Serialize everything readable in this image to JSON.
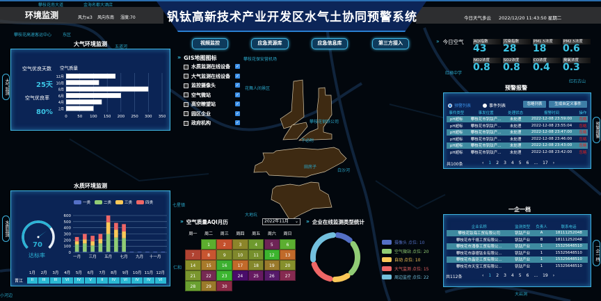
{
  "header": {
    "section": "环境监测",
    "wind_force": "风力≤3",
    "wind_dir": "风向东南",
    "humidity": "湿度:70",
    "title": "钒钛高新技术产业开发区水气土协同预警系统",
    "weather": "今日天气多云",
    "datetime": "2022/12/20 11:43:50 星期二"
  },
  "nav_buttons": [
    "视频监控",
    "应急资源库",
    "应急信息库",
    "第三方接入"
  ],
  "side_tabs": {
    "air": "大气监测",
    "water": "水质监测",
    "alert": "预警报警",
    "enterprise": "一企一档"
  },
  "gis": {
    "title": "GIS地图图标",
    "items": [
      {
        "label": "水质监测在线设备",
        "checked": true
      },
      {
        "label": "大气监测在线设备",
        "checked": true
      },
      {
        "label": "监控摄像头",
        "checked": true
      },
      {
        "label": "空气微站",
        "checked": true
      },
      {
        "label": "高空瞭望站",
        "checked": true
      },
      {
        "label": "园区企业",
        "checked": true
      },
      {
        "label": "政府机构",
        "checked": true
      }
    ]
  },
  "air_panel": {
    "title": "大气环境监测",
    "good_days_label": "空气优良天数",
    "good_days": "25天",
    "good_rate_label": "空气优良率",
    "good_rate": "80%",
    "chart_data": {
      "type": "bar",
      "orientation": "horizontal",
      "title": "空气质量",
      "categories": [
        "12月",
        "10月",
        "8月",
        "6月",
        "4月",
        "2月"
      ],
      "values": [
        180,
        120,
        300,
        200,
        130,
        100
      ],
      "xlim": [
        0,
        350
      ],
      "xticks": [
        "0",
        "50",
        "100",
        "150",
        "200",
        "250",
        "300",
        "350"
      ],
      "grid": true,
      "color": "#ffffff"
    }
  },
  "water_panel": {
    "title": "水质环境监测",
    "gauge_value": "70",
    "gauge_fraction": 0.7,
    "gauge_label": "达标率",
    "chart_data": {
      "type": "bar",
      "stacked": true,
      "categories": [
        "一月",
        "二月",
        "三月",
        "四月",
        "五月",
        "六月",
        "七月",
        "八月",
        "九月",
        "十月",
        "十一月",
        "十二月"
      ],
      "xtick_labels": [
        "一月",
        "",
        "三月",
        "",
        "五月",
        "",
        "七月",
        "",
        "九月",
        "",
        "十一月",
        ""
      ],
      "ylim": [
        0,
        600
      ],
      "yticks": [
        "0",
        "100",
        "200",
        "300",
        "400",
        "500",
        "600"
      ],
      "legend_position": "top",
      "series": [
        {
          "name": "一类",
          "color": "#5470c6",
          "values": [
            10,
            10,
            10,
            10,
            10,
            10,
            10,
            10,
            10,
            10,
            10,
            10
          ]
        },
        {
          "name": "二类",
          "color": "#91cc75",
          "values": [
            120,
            135,
            100,
            135,
            290,
            230,
            220,
            0,
            0,
            0,
            0,
            0
          ]
        },
        {
          "name": "三类",
          "color": "#fac858",
          "values": [
            50,
            65,
            70,
            70,
            190,
            130,
            110,
            0,
            0,
            0,
            0,
            0
          ]
        },
        {
          "name": "四类",
          "color": "#ee6666",
          "values": [
            70,
            90,
            90,
            85,
            110,
            110,
            120,
            0,
            0,
            0,
            0,
            0
          ]
        }
      ]
    },
    "grade_row": {
      "river": "晋江",
      "months": [
        "1月",
        "2月",
        "3月",
        "4月",
        "5月",
        "6月",
        "7月",
        "8月",
        "9月",
        "10月",
        "11月",
        "12月"
      ],
      "grades": [
        "II",
        "III",
        "III",
        "VI",
        "IV",
        "V",
        "II",
        "IV",
        "VI",
        "IV",
        "IV",
        "VI"
      ]
    }
  },
  "today_air": {
    "title": "今日空气",
    "metrics": [
      {
        "label": "AQI指数",
        "value": "43"
      },
      {
        "label": "污染指数",
        "value": "28"
      },
      {
        "label": "PM1.5浓度",
        "value": "18"
      },
      {
        "label": "PM2.5浓度",
        "value": "0.6"
      },
      {
        "label": "NO2浓度",
        "value": "0.8"
      },
      {
        "label": "SO2浓度",
        "value": "0.8"
      },
      {
        "label": "CO浓度",
        "value": "0.4"
      },
      {
        "label": "臭氧浓度",
        "value": "0.3"
      }
    ]
  },
  "alerts": {
    "title": "预警报警",
    "radio_alert": "预警列表",
    "radio_event": "事件列表",
    "ignore_btn": "忽略列表",
    "custom_btn": "生成自定义事件",
    "columns": [
      "事件类型",
      "事发位置",
      "处理状态",
      "报警时间",
      "操作"
    ],
    "rows": [
      [
        "pH超标",
        "攀枝花市钒钛产...",
        "未处理",
        "2022-12-08 23:59:00",
        "忽略"
      ],
      [
        "pH超标",
        "攀枝花市钒钛产...",
        "未处理",
        "2022-12-08 23:55:04",
        "忽略"
      ],
      [
        "pH超标",
        "攀枝花市钒钛产...",
        "未处理",
        "2022-12-08 23:47:00",
        "忽略"
      ],
      [
        "pH超标",
        "攀枝花市钒钛产...",
        "未处理",
        "2022-12-08 23:46:00",
        "忽略"
      ],
      [
        "pH超标",
        "攀枝花市钒钛产...",
        "未处理",
        "2022-12-08 23:43:00",
        "忽略"
      ],
      [
        "pH超标",
        "攀枝花市钒钛产...",
        "未处理",
        "2022-12-08 23:42:00",
        "忽略"
      ]
    ],
    "total": "共100条",
    "pages": [
      "1",
      "2",
      "3",
      "4",
      "5",
      "6",
      "...",
      "17"
    ]
  },
  "enterprise": {
    "title": "一企一档",
    "columns": [
      "企业名称",
      "监测类型",
      "负责人",
      "联系电话"
    ],
    "rows": [
      [
        "攀枝花钛海工贸有限公司",
        "钒钛产业",
        "A",
        "18111252048"
      ],
      [
        "攀枝花市千禧工贸有限公...",
        "钒钛产业",
        "B",
        "18111252048"
      ],
      [
        "攀枝花市涌泰工贸有限公...",
        "钒钛产业",
        "1",
        "15325648510"
      ],
      [
        "攀枝花市康德钛业有限公...",
        "钒钛产业",
        "1",
        "15325648510"
      ],
      [
        "攀枝花市晶钜工贸有限公...",
        "钒钛产业",
        "1",
        "15325648510"
      ],
      [
        "攀枝花市天宝工贸有限公...",
        "钒钛产业",
        "1",
        "15325648510"
      ]
    ],
    "total": "共112条",
    "pages": [
      "1",
      "2",
      "3",
      "4",
      "5",
      "6",
      "...",
      "19"
    ]
  },
  "aqi_calendar": {
    "title": "空气质量AQI月历",
    "month_select": "2022年11月",
    "weekdays": [
      "周一",
      "周二",
      "周三",
      "周四",
      "周五",
      "周六",
      "周日"
    ],
    "first_weekday_index": 1,
    "days": [
      {
        "d": "1",
        "color": "#5cae2e"
      },
      {
        "d": "2",
        "color": "#c4512d"
      },
      {
        "d": "3",
        "color": "#8c852a"
      },
      {
        "d": "4",
        "color": "#6e9a2e"
      },
      {
        "d": "5",
        "color": "#6e2456"
      },
      {
        "d": "6",
        "color": "#5cae30"
      },
      {
        "d": "7",
        "color": "#b04332"
      },
      {
        "d": "8",
        "color": "#c85530"
      },
      {
        "d": "9",
        "color": "#7f8a2a"
      },
      {
        "d": "10",
        "color": "#80882c"
      },
      {
        "d": "11",
        "color": "#76902c"
      },
      {
        "d": "12",
        "color": "#3cb52e"
      },
      {
        "d": "13",
        "color": "#c06a2a"
      },
      {
        "d": "14",
        "color": "#8a8f2a"
      },
      {
        "d": "15",
        "color": "#a87a2a"
      },
      {
        "d": "16",
        "color": "#3cb030"
      },
      {
        "d": "17",
        "color": "#c26a2a"
      },
      {
        "d": "18",
        "color": "#84882c"
      },
      {
        "d": "19",
        "color": "#9a7a2c"
      },
      {
        "d": "20",
        "color": "#86902c"
      },
      {
        "d": "21",
        "color": "#7a962e"
      },
      {
        "d": "22",
        "color": "#762a52"
      },
      {
        "d": "23",
        "color": "#3cb530"
      },
      {
        "d": "24",
        "color": "#4a0c6a"
      },
      {
        "d": "25",
        "color": "#661a60"
      },
      {
        "d": "26",
        "color": "#561a6a"
      },
      {
        "d": "27",
        "color": "#862a50"
      },
      {
        "d": "28",
        "color": "#6aa030"
      },
      {
        "d": "29",
        "color": "#9a7a2a"
      },
      {
        "d": "30",
        "color": "#8a2a45"
      }
    ]
  },
  "monitor_types": {
    "title": "企业在线监测类型统计",
    "chart_data": {
      "type": "pie",
      "donut": true,
      "legend_position": "right",
      "slices": [
        {
          "name": "摄像头",
          "label": "摄像头 点位: 10",
          "value": 10,
          "color": "#5470c6"
        },
        {
          "name": "空气微站",
          "label": "空气微站 点位: 20",
          "value": 20,
          "color": "#91cc75"
        },
        {
          "name": "自动",
          "label": "自动 点位: 10",
          "value": 10,
          "color": "#fac858"
        },
        {
          "name": "大气监测",
          "label": "大气监测 点位: 15",
          "value": 15,
          "color": "#ee6666"
        },
        {
          "name": "周边监控",
          "label": "周边监控 点位: 22",
          "value": 22,
          "color": "#73c0de"
        }
      ]
    }
  },
  "map": {
    "labels": [
      "攀枝花南大道",
      "金海名都大酒店",
      "攀枝花高速客运中心",
      "东区",
      "五道河",
      "攀枝花保安营机场",
      "花舞人间景区",
      "红格中学",
      "红石古山",
      "大地坑",
      "七星镇",
      "攀枝花钢铁公司",
      "下必附",
      "田房子",
      "白沙河",
      "小河边",
      "仁和",
      "大岩洞"
    ],
    "accent": "#3fb4e0",
    "region_color": "#3e2a12"
  }
}
